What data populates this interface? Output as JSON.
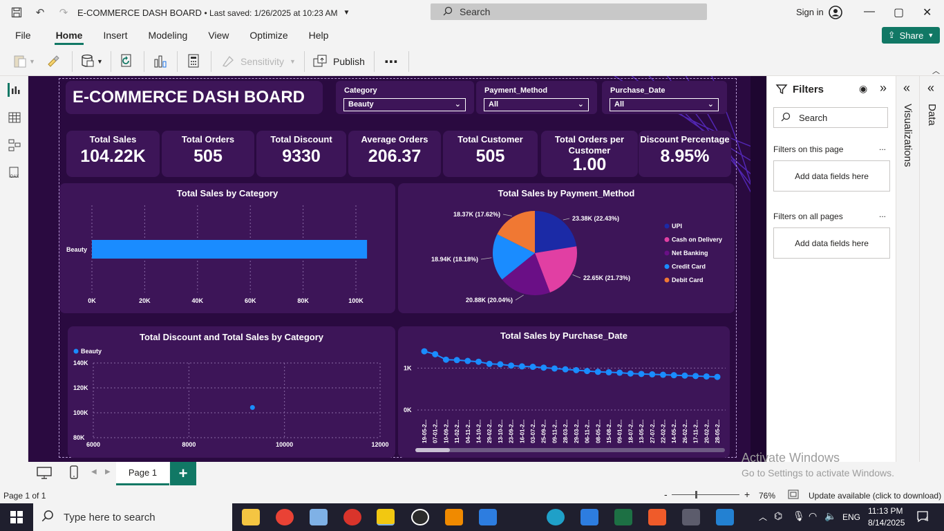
{
  "titlebar": {
    "title": "E-COMMERCE DASH BOARD",
    "saved": "• Last saved: 1/26/2025 at 10:23 AM",
    "search_placeholder": "Search",
    "signin": "Sign in"
  },
  "menu": [
    "File",
    "Home",
    "Insert",
    "Modeling",
    "View",
    "Optimize",
    "Help"
  ],
  "share_label": "Share",
  "ribbon": {
    "sensitivity": "Sensitivity",
    "publish": "Publish",
    "more": "⋯"
  },
  "report": {
    "title": "E-COMMERCE DASH BOARD",
    "slicers": [
      {
        "label": "Category",
        "value": "Beauty"
      },
      {
        "label": "Payment_Method",
        "value": "All"
      },
      {
        "label": "Purchase_Date",
        "value": "All"
      }
    ],
    "kpis": [
      {
        "label": "Total Sales",
        "value": "104.22K"
      },
      {
        "label": "Total Orders",
        "value": "505"
      },
      {
        "label": "Total Discount",
        "value": "9330"
      },
      {
        "label": "Average Orders",
        "value": "206.37"
      },
      {
        "label": "Total Customer",
        "value": "505"
      },
      {
        "label": "Total Orders per Customer",
        "value": "1.00"
      },
      {
        "label": "Discount Percentage",
        "value": "8.95%"
      }
    ]
  },
  "chart_data": [
    {
      "type": "bar",
      "title": "Total Sales by Category",
      "categories": [
        "Beauty"
      ],
      "values": [
        104220
      ],
      "xlim": [
        0,
        110000
      ],
      "xticks": [
        "0K",
        "20K",
        "40K",
        "60K",
        "80K",
        "100K"
      ],
      "color": "#1a8cff"
    },
    {
      "type": "pie",
      "title": "Total Sales by Payment_Method",
      "slices": [
        {
          "name": "UPI",
          "value": 23.38,
          "label": "23.38K (22.43%)",
          "color": "#1b2aa6"
        },
        {
          "name": "Cash on Delivery",
          "value": 22.65,
          "label": "22.65K (21.73%)",
          "color": "#e13fa3"
        },
        {
          "name": "Net Banking",
          "value": 20.88,
          "label": "20.88K (20.04%)",
          "color": "#6a0f86"
        },
        {
          "name": "Credit Card",
          "value": 18.94,
          "label": "18.94K (18.18%)",
          "color": "#1a8cff"
        },
        {
          "name": "Debit Card",
          "value": 18.37,
          "label": "18.37K (17.62%)",
          "color": "#f07833"
        }
      ]
    },
    {
      "type": "scatter",
      "title": "Total Discount and Total Sales by Category",
      "series": [
        {
          "name": "Beauty",
          "points": [
            {
              "x": 9330,
              "y": 104220
            }
          ]
        }
      ],
      "xlim": [
        6000,
        12000
      ],
      "ylim": [
        80000,
        140000
      ],
      "xticks": [
        "6000",
        "8000",
        "10000",
        "12000"
      ],
      "yticks": [
        "140K",
        "120K",
        "100K",
        "80K"
      ],
      "color": "#1a8cff"
    },
    {
      "type": "line",
      "title": "Total Sales by Purchase_Date",
      "x": [
        "19-05-2...",
        "07-01-2...",
        "10-09-2...",
        "11-02-2...",
        "04-11-2...",
        "14-10-2...",
        "29-02-2...",
        "13-10-2...",
        "23-09-2...",
        "16-01-2...",
        "03-07-2...",
        "25-09-2...",
        "09-11-2...",
        "28-03-2...",
        "29-03-2...",
        "06-11-2...",
        "08-05-2...",
        "15-08-2...",
        "09-01-2...",
        "18-07-2...",
        "13-05-2...",
        "27-07-2...",
        "22-02-2...",
        "14-05-2...",
        "26-02-2...",
        "17-11-2...",
        "20-02-2...",
        "28-05-2..."
      ],
      "values": [
        1400,
        1330,
        1200,
        1190,
        1170,
        1150,
        1100,
        1090,
        1060,
        1040,
        1030,
        1010,
        990,
        970,
        950,
        930,
        910,
        900,
        890,
        870,
        860,
        850,
        840,
        830,
        820,
        810,
        800,
        790
      ],
      "ylim": [
        0,
        1500
      ],
      "yticks": [
        "1K",
        "0K"
      ],
      "color": "#1a8cff"
    }
  ],
  "filters": {
    "title": "Filters",
    "search": "Search",
    "on_page": "Filters on this page",
    "on_all": "Filters on all pages",
    "add": "Add data fields here",
    "dots": "..."
  },
  "panes": {
    "visualizations": "Visualizations",
    "data": "Data"
  },
  "pages": {
    "tab": "Page 1",
    "add": "+"
  },
  "status": {
    "page": "Page 1 of 1",
    "zoom": "76%",
    "update": "Update available (click to download)"
  },
  "watermark": {
    "line1": "Activate Windows",
    "line2": "Go to Settings to activate Windows."
  },
  "taskbar": {
    "search": "Type here to search",
    "lang": "ENG",
    "time": "11:13 PM",
    "date": "8/14/2025",
    "notif": "4"
  }
}
